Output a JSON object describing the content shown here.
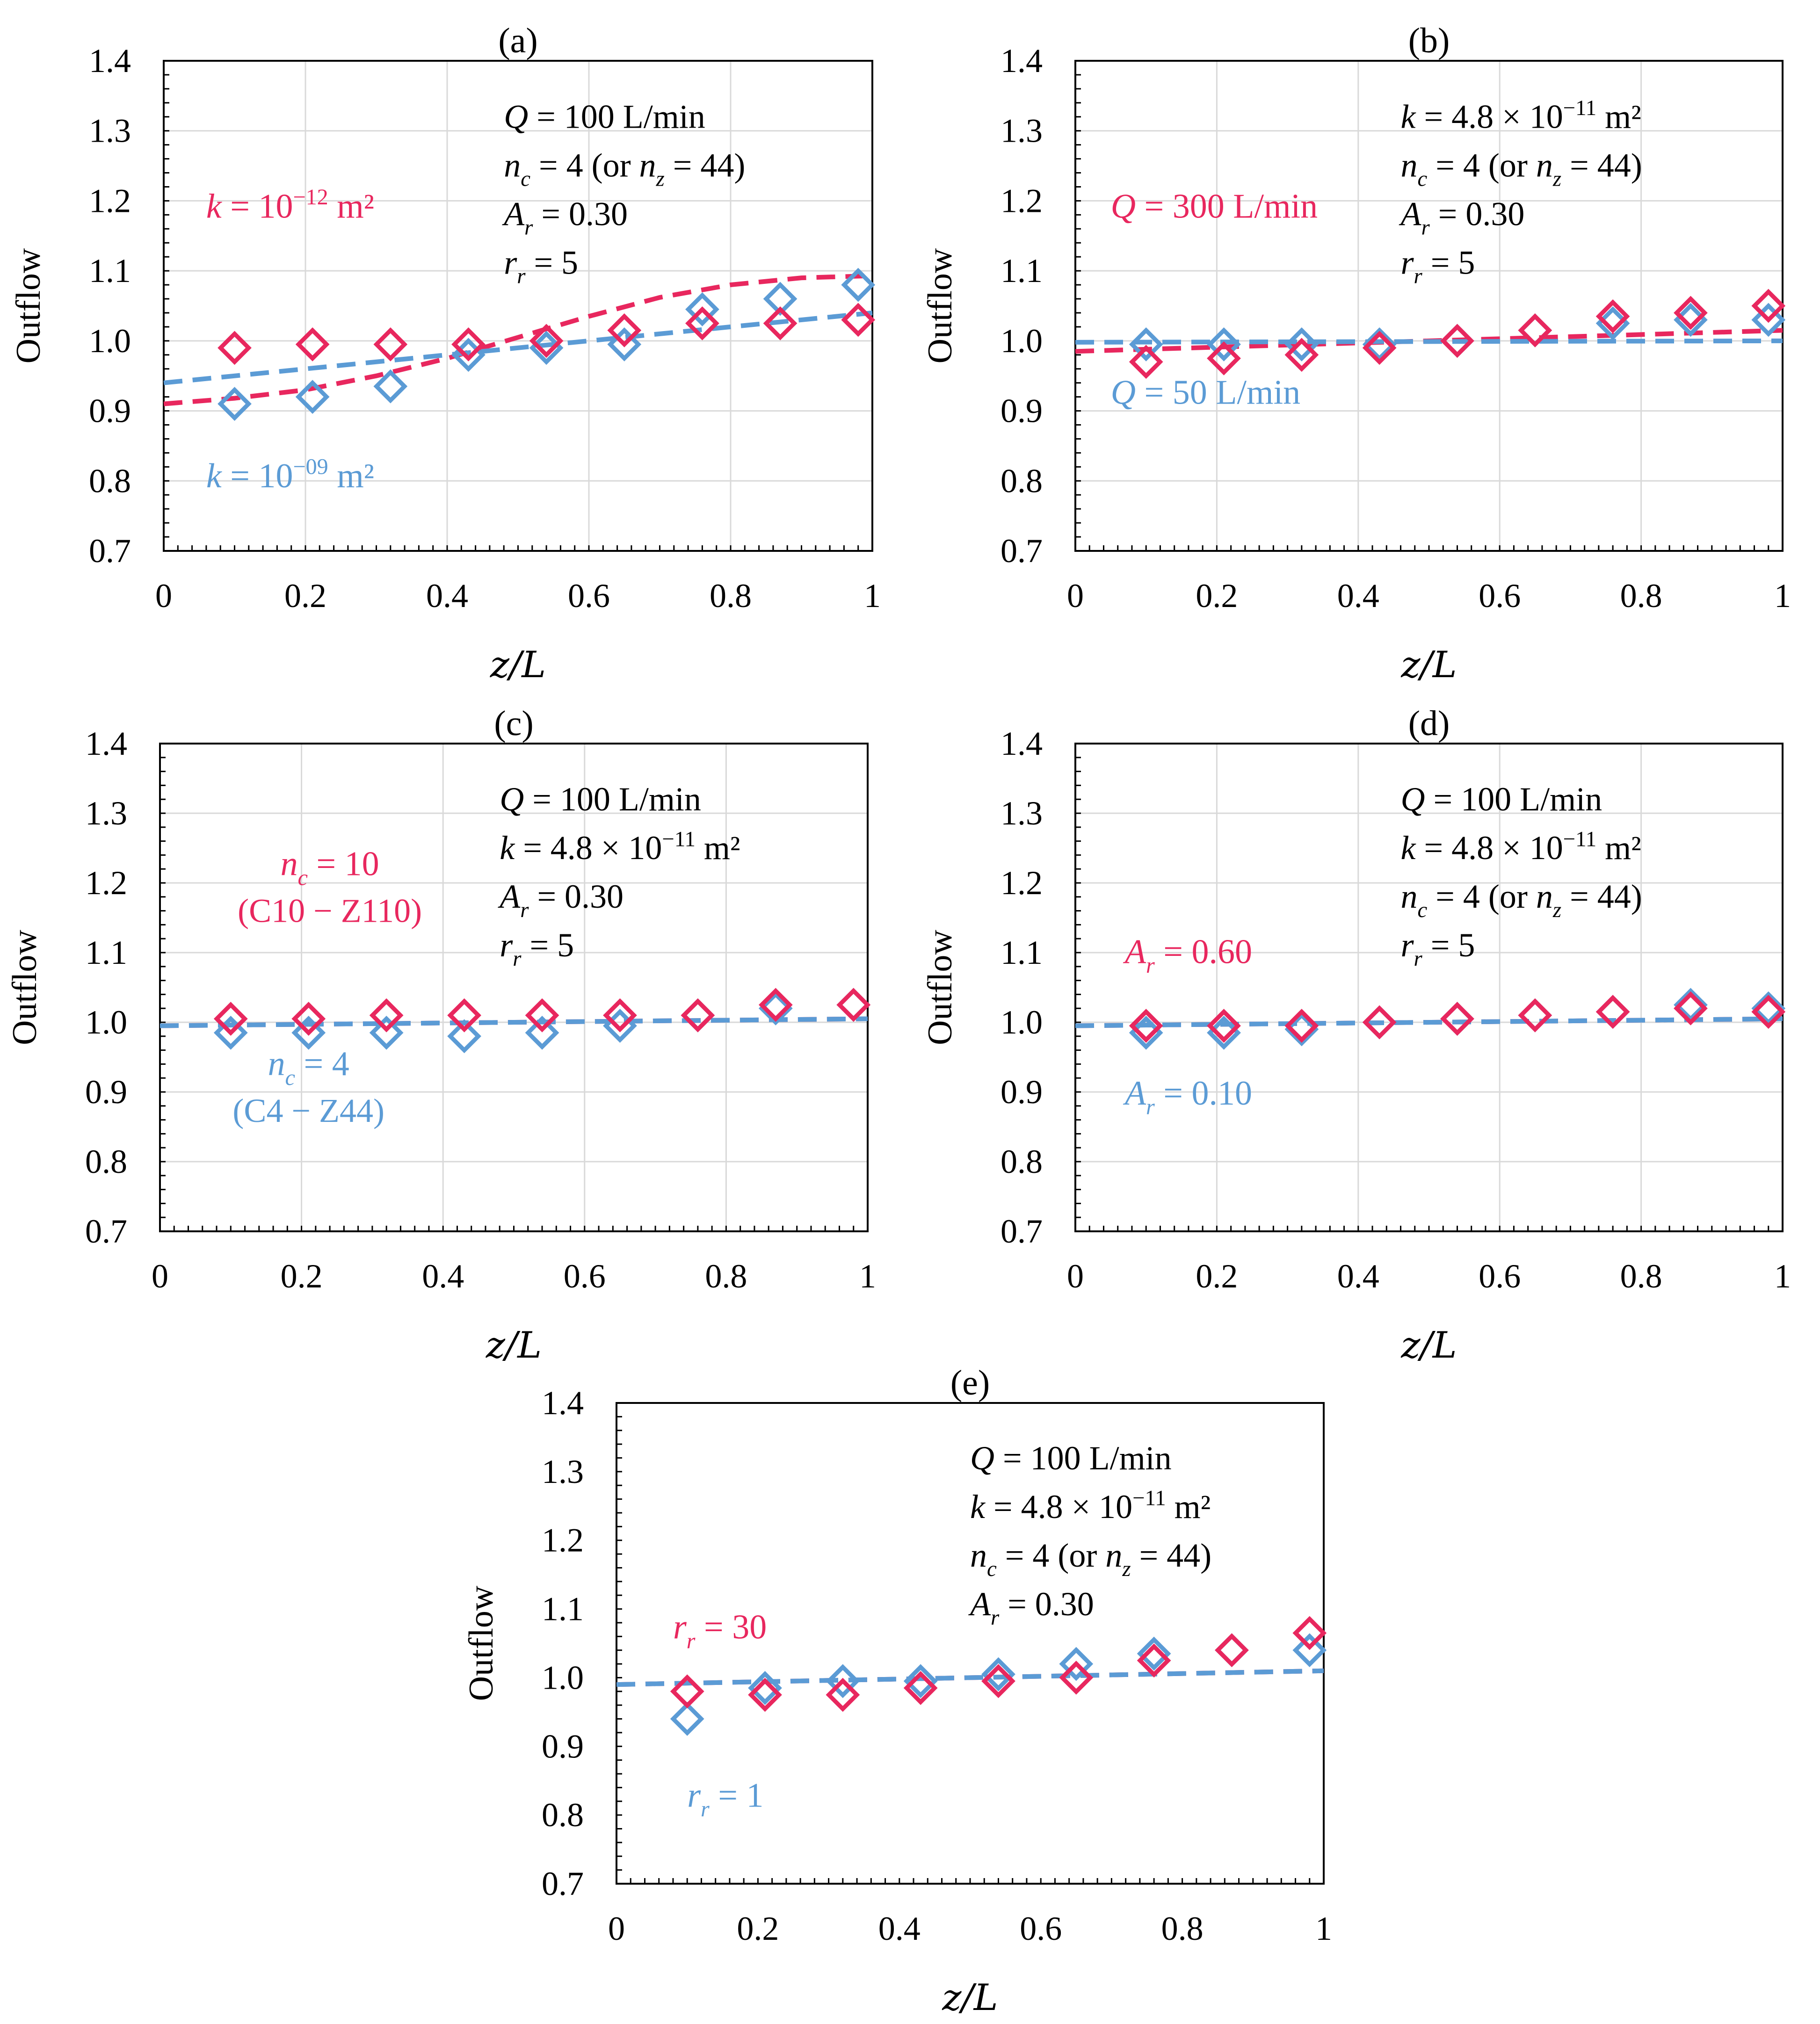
{
  "figure": {
    "colors": {
      "pink": "#E8275E",
      "blue": "#5B9BD5",
      "axis": "#000000",
      "grid": "#D9D9D9"
    },
    "marker": "diamond-open",
    "line_style": "dashed"
  },
  "chart_data": [
    {
      "id": "a",
      "type": "scatter",
      "title": "(a)",
      "xlabel": "z/L",
      "ylabel": "Outflow",
      "xlim": [
        0,
        1
      ],
      "ylim": [
        0.7,
        1.4
      ],
      "xticks": [
        "0",
        "0.2",
        "0.4",
        "0.6",
        "0.8",
        "1"
      ],
      "yticks": [
        "0.7",
        "0.8",
        "0.9",
        "1.0",
        "1.1",
        "1.2",
        "1.3",
        "1.4"
      ],
      "grid": true,
      "params": [
        "Q = 100 L/min",
        "n_c = 4 (or n_z = 44)",
        "A_r = 0.30",
        "r_r = 5"
      ],
      "series": [
        {
          "name": "k = 10^−12 m²",
          "color": "pink",
          "x": [
            0.1,
            0.21,
            0.32,
            0.43,
            0.54,
            0.65,
            0.76,
            0.87,
            0.98
          ],
          "y": [
            0.99,
            0.995,
            0.995,
            0.995,
            1.0,
            1.015,
            1.025,
            1.025,
            1.03
          ],
          "fit_x": [
            0,
            0.1,
            0.2,
            0.3,
            0.4,
            0.5,
            0.6,
            0.7,
            0.8,
            0.9,
            1.0
          ],
          "fit_y": [
            0.91,
            0.918,
            0.93,
            0.95,
            0.975,
            1.005,
            1.035,
            1.062,
            1.08,
            1.09,
            1.093
          ]
        },
        {
          "name": "k = 10^−09 m²",
          "color": "blue",
          "x": [
            0.1,
            0.21,
            0.32,
            0.43,
            0.54,
            0.65,
            0.76,
            0.87,
            0.98
          ],
          "y": [
            0.91,
            0.92,
            0.935,
            0.98,
            0.99,
            0.995,
            1.045,
            1.06,
            1.08
          ],
          "fit_x": [
            0,
            1.0
          ],
          "fit_y": [
            0.94,
            1.04
          ]
        }
      ]
    },
    {
      "id": "b",
      "type": "scatter",
      "title": "(b)",
      "xlabel": "z/L",
      "ylabel": "Outflow",
      "xlim": [
        0,
        1
      ],
      "ylim": [
        0.7,
        1.4
      ],
      "xticks": [
        "0",
        "0.2",
        "0.4",
        "0.6",
        "0.8",
        "1"
      ],
      "yticks": [
        "0.7",
        "0.8",
        "0.9",
        "1.0",
        "1.1",
        "1.2",
        "1.3",
        "1.4"
      ],
      "grid": true,
      "params": [
        "k = 4.8 × 10^−11 m²",
        "n_c = 4 (or n_z = 44)",
        "A_r = 0.30",
        "r_r = 5"
      ],
      "series": [
        {
          "name": "Q = 300 L/min",
          "color": "pink",
          "x": [
            0.1,
            0.21,
            0.32,
            0.43,
            0.54,
            0.65,
            0.76,
            0.87,
            0.98
          ],
          "y": [
            0.97,
            0.975,
            0.98,
            0.99,
            1.0,
            1.015,
            1.035,
            1.04,
            1.05
          ],
          "fit_x": [
            0,
            1.0
          ],
          "fit_y": [
            0.985,
            1.015
          ]
        },
        {
          "name": "Q = 50 L/min",
          "color": "blue",
          "x": [
            0.1,
            0.21,
            0.32,
            0.43,
            0.54,
            0.65,
            0.76,
            0.87,
            0.98
          ],
          "y": [
            0.995,
            0.995,
            0.995,
            0.995,
            1.0,
            1.015,
            1.025,
            1.03,
            1.03
          ],
          "fit_x": [
            0,
            1.0
          ],
          "fit_y": [
            0.998,
            1.0
          ]
        }
      ]
    },
    {
      "id": "c",
      "type": "scatter",
      "title": "(c)",
      "xlabel": "z/L",
      "ylabel": "Outflow",
      "xlim": [
        0,
        1
      ],
      "ylim": [
        0.7,
        1.4
      ],
      "xticks": [
        "0",
        "0.2",
        "0.4",
        "0.6",
        "0.8",
        "1"
      ],
      "yticks": [
        "0.7",
        "0.8",
        "0.9",
        "1.0",
        "1.1",
        "1.2",
        "1.3",
        "1.4"
      ],
      "grid": true,
      "params": [
        "Q = 100 L/min",
        "k = 4.8 × 10^−11 m²",
        "A_r = 0.30",
        "r_r = 5"
      ],
      "series": [
        {
          "name": "n_c = 10 (C10 − Z110)",
          "color": "pink",
          "x": [
            0.1,
            0.21,
            0.32,
            0.43,
            0.54,
            0.65,
            0.76,
            0.87,
            0.98
          ],
          "y": [
            1.005,
            1.005,
            1.01,
            1.01,
            1.01,
            1.01,
            1.01,
            1.025,
            1.025
          ],
          "fit_x": [
            0,
            1.0
          ],
          "fit_y": [
            0.995,
            1.005
          ]
        },
        {
          "name": "n_c = 4 (C4 − Z44)",
          "color": "blue",
          "x": [
            0.1,
            0.21,
            0.32,
            0.43,
            0.54,
            0.65,
            0.76,
            0.87,
            0.98
          ],
          "y": [
            0.985,
            0.985,
            0.985,
            0.98,
            0.985,
            0.995,
            1.01,
            1.02,
            1.025
          ],
          "fit_x": [
            0,
            1.0
          ],
          "fit_y": [
            0.995,
            1.005
          ]
        }
      ]
    },
    {
      "id": "d",
      "type": "scatter",
      "title": "(d)",
      "xlabel": "z/L",
      "ylabel": "Outflow",
      "xlim": [
        0,
        1
      ],
      "ylim": [
        0.7,
        1.4
      ],
      "xticks": [
        "0",
        "0.2",
        "0.4",
        "0.6",
        "0.8",
        "1"
      ],
      "yticks": [
        "0.7",
        "0.8",
        "0.9",
        "1.0",
        "1.1",
        "1.2",
        "1.3",
        "1.4"
      ],
      "grid": true,
      "params": [
        "Q = 100 L/min",
        "k = 4.8 × 10^−11 m²",
        "n_c = 4 (or n_z = 44)",
        "r_r = 5"
      ],
      "series": [
        {
          "name": "A_r = 0.60",
          "color": "pink",
          "x": [
            0.1,
            0.21,
            0.32,
            0.43,
            0.54,
            0.65,
            0.76,
            0.87,
            0.98
          ],
          "y": [
            0.995,
            0.995,
            0.995,
            1.0,
            1.005,
            1.01,
            1.015,
            1.02,
            1.015
          ],
          "fit_x": [
            0,
            1.0
          ],
          "fit_y": [
            0.995,
            1.005
          ]
        },
        {
          "name": "A_r = 0.10",
          "color": "blue",
          "x": [
            0.1,
            0.21,
            0.32,
            0.43,
            0.54,
            0.65,
            0.76,
            0.87,
            0.98
          ],
          "y": [
            0.985,
            0.985,
            0.99,
            1.0,
            1.005,
            1.01,
            1.015,
            1.025,
            1.02
          ],
          "fit_x": [
            0,
            1.0
          ],
          "fit_y": [
            0.995,
            1.005
          ]
        }
      ]
    },
    {
      "id": "e",
      "type": "scatter",
      "title": "(e)",
      "xlabel": "z/L",
      "ylabel": "Outflow",
      "xlim": [
        0,
        1
      ],
      "ylim": [
        0.7,
        1.4
      ],
      "xticks": [
        "0",
        "0.2",
        "0.4",
        "0.6",
        "0.8",
        "1"
      ],
      "yticks": [
        "0.7",
        "0.8",
        "0.9",
        "1.0",
        "1.1",
        "1.2",
        "1.3",
        "1.4"
      ],
      "grid": false,
      "params": [
        "Q = 100 L/min",
        "k = 4.8 × 10^−11 m²",
        "n_c = 4 (or n_z = 44)",
        "A_r = 0.30"
      ],
      "series": [
        {
          "name": "r_r = 30",
          "color": "pink",
          "x": [
            0.1,
            0.21,
            0.32,
            0.43,
            0.54,
            0.65,
            0.76,
            0.87,
            0.98
          ],
          "y": [
            0.98,
            0.975,
            0.975,
            0.985,
            0.995,
            1.0,
            1.025,
            1.04,
            1.065
          ],
          "fit_x": [
            0,
            1.0
          ],
          "fit_y": [
            0.99,
            1.01
          ]
        },
        {
          "name": "r_r = 1",
          "color": "blue",
          "x": [
            0.1,
            0.21,
            0.32,
            0.43,
            0.54,
            0.65,
            0.76,
            0.87,
            0.98
          ],
          "y": [
            0.94,
            0.985,
            0.995,
            0.995,
            1.005,
            1.02,
            1.035,
            1.04,
            1.04
          ],
          "fit_x": [
            0,
            1.0
          ],
          "fit_y": [
            0.99,
            1.01
          ]
        }
      ]
    }
  ]
}
